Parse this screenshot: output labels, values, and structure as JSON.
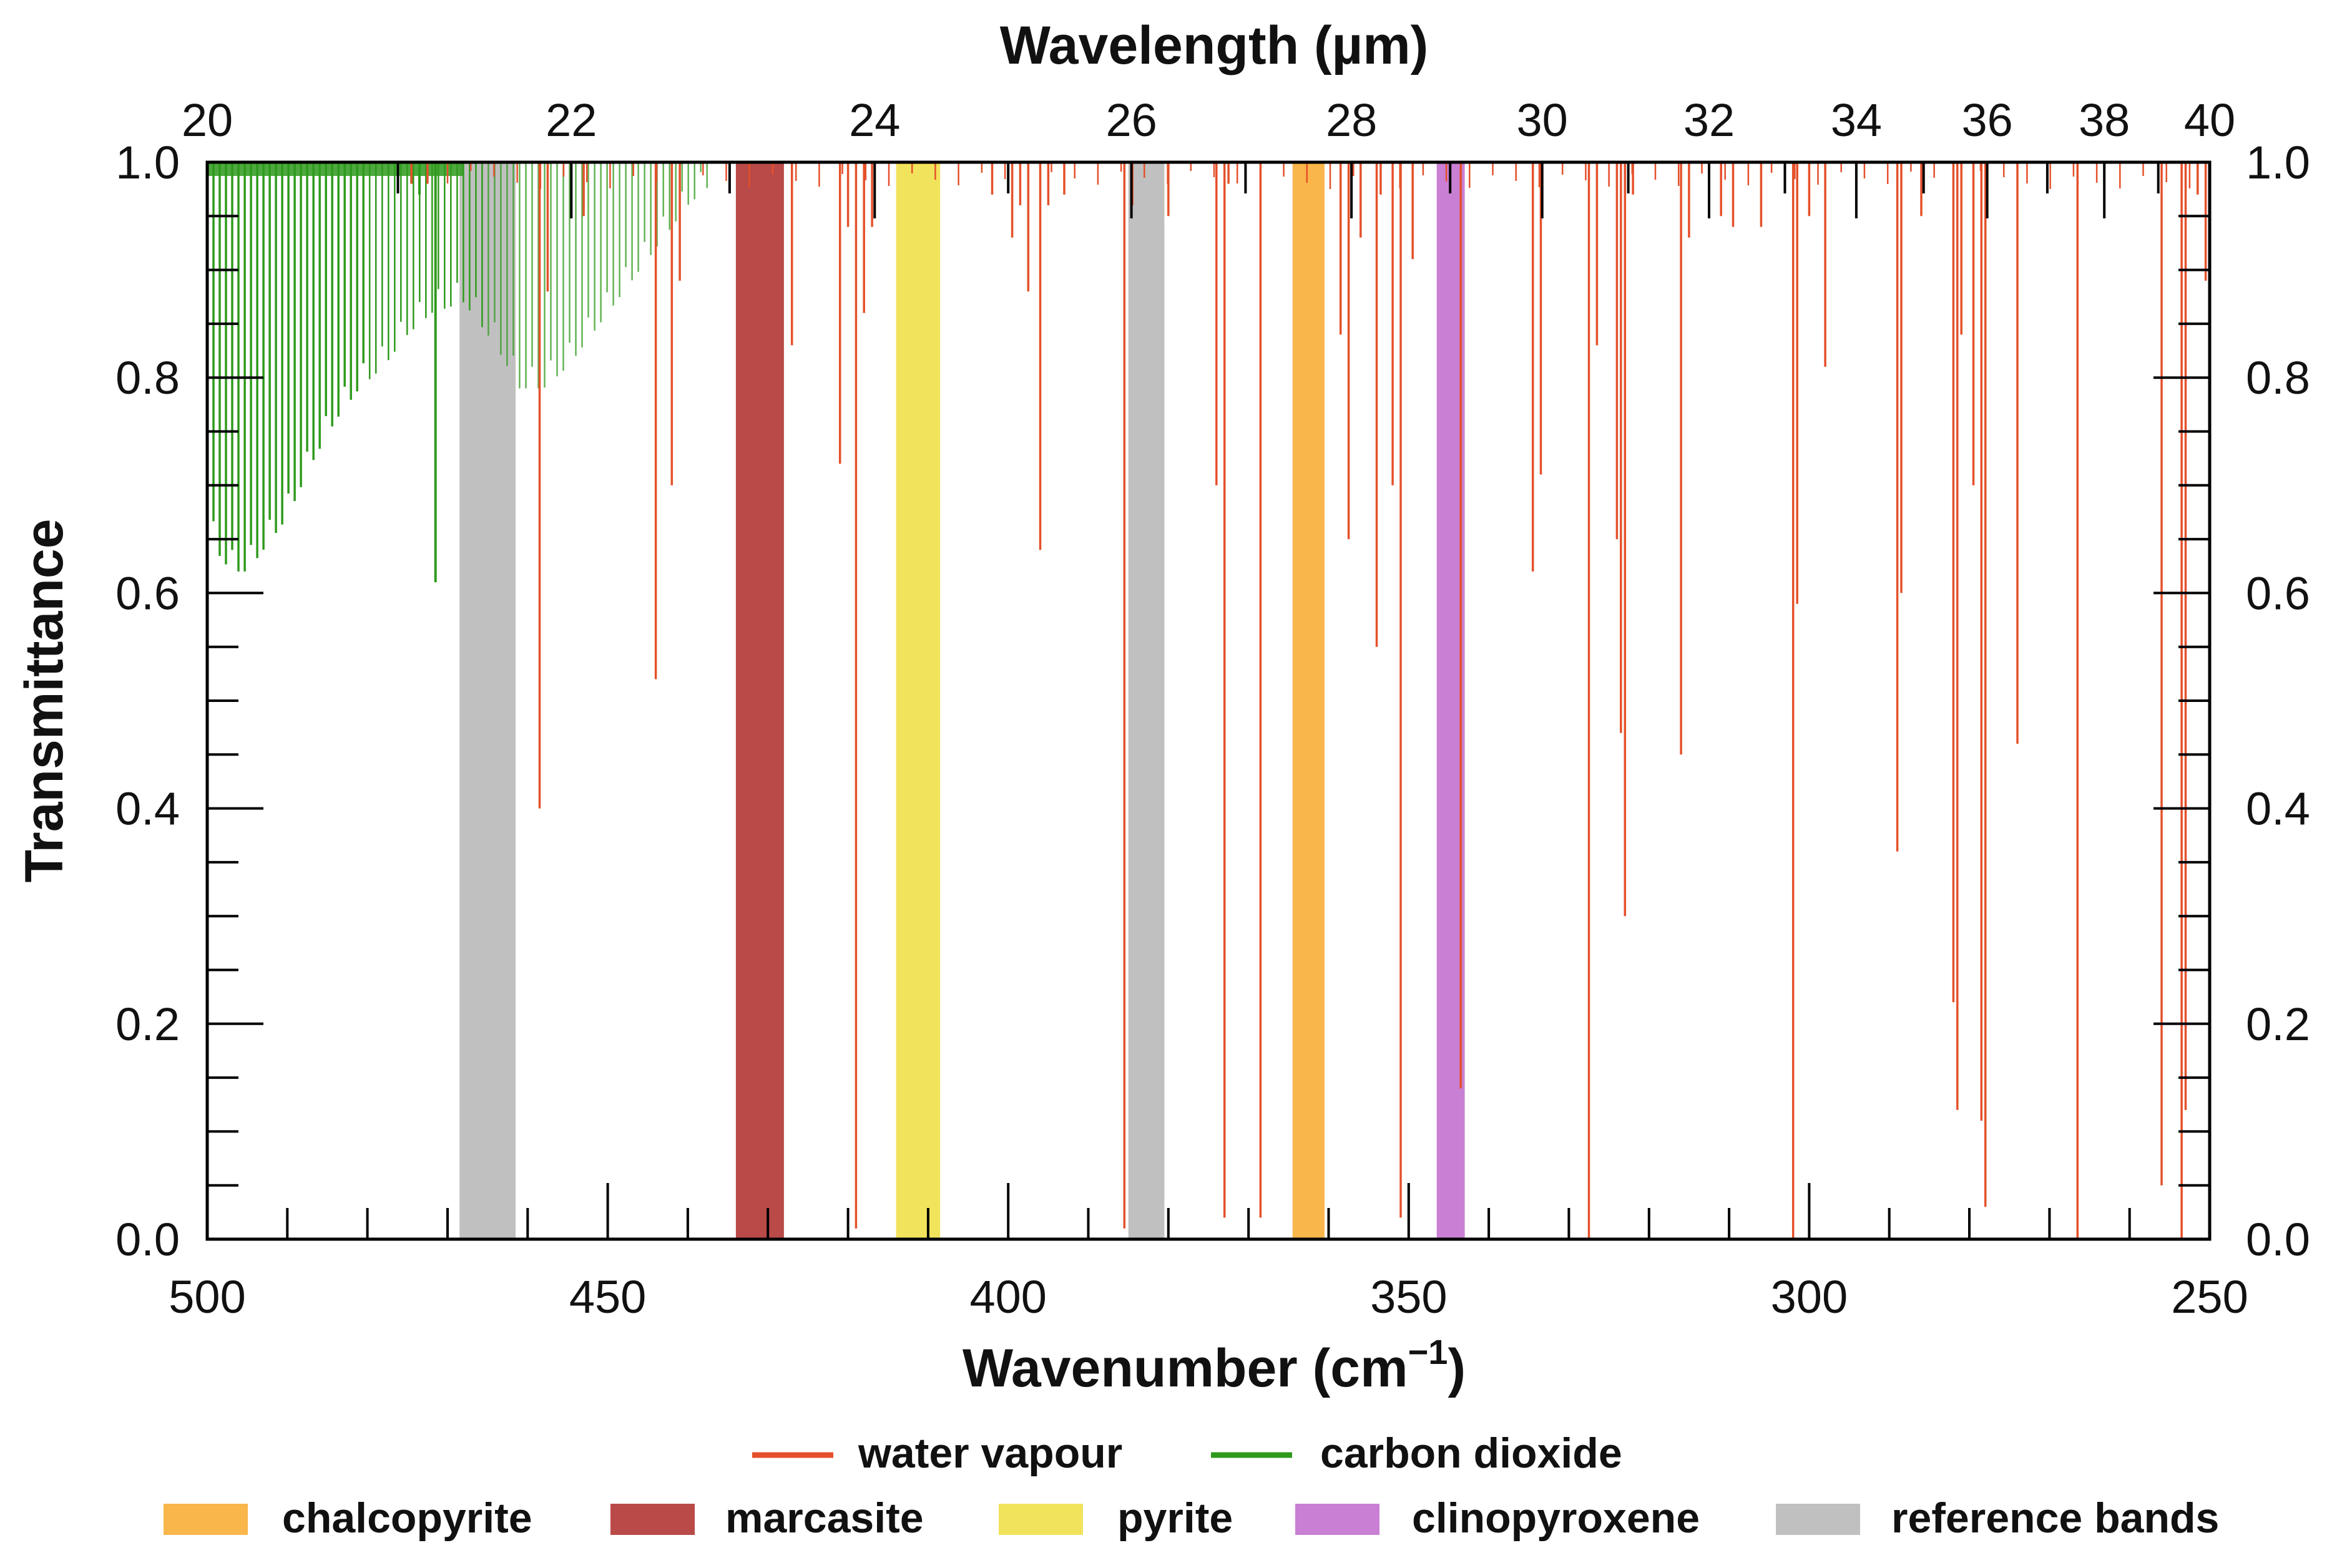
{
  "chart_data": {
    "type": "line",
    "title": "",
    "xlabel": "Wavenumber (cm",
    "xlabel_superscript": "−1",
    "xlabel_close": ")",
    "x2label": "Wavelength (µm)",
    "ylabel": "Transmittance",
    "xlim": [
      500,
      250
    ],
    "ylim": [
      0.0,
      1.0
    ],
    "x_ticks": [
      "500",
      "450",
      "400",
      "350",
      "300",
      "250"
    ],
    "x_tick_values": [
      500,
      450,
      400,
      350,
      300,
      250
    ],
    "x2_ticks": [
      "20",
      "22",
      "24",
      "26",
      "28",
      "30",
      "32",
      "34",
      "36",
      "38",
      "40"
    ],
    "x2_tick_values": [
      20,
      22,
      24,
      26,
      28,
      30,
      32,
      34,
      36,
      38,
      40
    ],
    "y_ticks": [
      "0.0",
      "0.2",
      "0.4",
      "0.6",
      "0.8",
      "1.0"
    ],
    "y_tick_values": [
      0.0,
      0.2,
      0.4,
      0.6,
      0.8,
      1.0
    ],
    "grid": false,
    "bands": [
      {
        "name": "reference bands",
        "from": 468.5,
        "to": 461.5,
        "color": "#c0c0c0"
      },
      {
        "name": "marcasite",
        "from": 434.0,
        "to": 428.0,
        "color": "#b94a48"
      },
      {
        "name": "pyrite",
        "from": 414.0,
        "to": 408.5,
        "color": "#f2e35c"
      },
      {
        "name": "reference bands",
        "from": 385.0,
        "to": 380.5,
        "color": "#c0c0c0"
      },
      {
        "name": "chalcopyrite",
        "from": 364.5,
        "to": 360.5,
        "color": "#f9b64a"
      },
      {
        "name": "clinopyroxene",
        "from": 346.5,
        "to": 343.0,
        "color": "#c97fd4"
      }
    ],
    "series": [
      {
        "name": "carbon dioxide",
        "color": "#2e9a1c",
        "envelope": [
          [
            500,
            0.67
          ],
          [
            499,
            0.64
          ],
          [
            497,
            0.62
          ],
          [
            495,
            0.62
          ],
          [
            493,
            0.64
          ],
          [
            490,
            0.67
          ],
          [
            487,
            0.72
          ],
          [
            484,
            0.76
          ],
          [
            481,
            0.79
          ],
          [
            478,
            0.81
          ],
          [
            475,
            0.84
          ],
          [
            472,
            0.86
          ],
          [
            468,
            0.87
          ],
          [
            464,
            0.83
          ],
          [
            461,
            0.79
          ],
          [
            458,
            0.79
          ],
          [
            455,
            0.81
          ],
          [
            452,
            0.84
          ],
          [
            449,
            0.87
          ],
          [
            446,
            0.9
          ],
          [
            443,
            0.93
          ],
          [
            440,
            0.96
          ],
          [
            437,
            0.98
          ]
        ],
        "lines": [
          [
            471.5,
            0.61
          ],
          [
            473.5,
            0.97
          ],
          [
            474.5,
            0.98
          ]
        ]
      },
      {
        "name": "water vapour",
        "color": "#e5502a",
        "lines": [
          [
            474.5,
            0.98
          ],
          [
            472.5,
            0.98
          ],
          [
            458.5,
            0.4
          ],
          [
            457.5,
            0.88
          ],
          [
            453,
            0.95
          ],
          [
            444,
            0.52
          ],
          [
            442,
            0.7
          ],
          [
            441,
            0.89
          ],
          [
            427,
            0.83
          ],
          [
            421,
            0.72
          ],
          [
            420,
            0.94
          ],
          [
            419,
            0.01
          ],
          [
            418,
            0.86
          ],
          [
            417,
            0.94
          ],
          [
            402,
            0.97
          ],
          [
            399.5,
            0.93
          ],
          [
            398.5,
            0.96
          ],
          [
            397.5,
            0.88
          ],
          [
            396,
            0.64
          ],
          [
            395,
            0.96
          ],
          [
            393,
            0.97
          ],
          [
            385.5,
            0.01
          ],
          [
            384.5,
            0.96
          ],
          [
            380,
            0.95
          ],
          [
            374,
            0.7
          ],
          [
            373,
            0.02
          ],
          [
            372.5,
            0.98
          ],
          [
            368.5,
            0.02
          ],
          [
            358.5,
            0.84
          ],
          [
            357.5,
            0.65
          ],
          [
            356,
            0.93
          ],
          [
            354,
            0.55
          ],
          [
            353.5,
            0.97
          ],
          [
            352,
            0.7
          ],
          [
            351,
            0.02
          ],
          [
            349.5,
            0.91
          ],
          [
            343.5,
            0.14
          ],
          [
            334.5,
            0.62
          ],
          [
            333.5,
            0.71
          ],
          [
            327.5,
            0.0
          ],
          [
            326.5,
            0.83
          ],
          [
            324,
            0.65
          ],
          [
            323.5,
            0.47
          ],
          [
            323,
            0.3
          ],
          [
            322,
            0.97
          ],
          [
            316,
            0.45
          ],
          [
            315,
            0.93
          ],
          [
            311,
            0.95
          ],
          [
            309.5,
            0.94
          ],
          [
            306,
            0.94
          ],
          [
            302,
            0.0
          ],
          [
            301.5,
            0.59
          ],
          [
            300,
            0.95
          ],
          [
            298,
            0.81
          ],
          [
            289,
            0.36
          ],
          [
            288.5,
            0.6
          ],
          [
            286,
            0.95
          ],
          [
            282,
            0.22
          ],
          [
            281.5,
            0.12
          ],
          [
            281,
            0.84
          ],
          [
            279.5,
            0.7
          ],
          [
            278.5,
            0.11
          ],
          [
            278,
            0.03
          ],
          [
            274,
            0.46
          ],
          [
            266.5,
            0.0
          ],
          [
            256,
            0.05
          ],
          [
            253.5,
            0.0
          ],
          [
            253,
            0.12
          ],
          [
            251.5,
            0.97
          ],
          [
            250.5,
            0.89
          ]
        ]
      }
    ],
    "legend": {
      "location": "bottom",
      "line_entries": [
        {
          "label": "water vapour",
          "color": "#e5502a"
        },
        {
          "label": "carbon dioxide",
          "color": "#2e9a1c"
        }
      ],
      "patch_entries": [
        {
          "label": "chalcopyrite",
          "color": "#f9b64a"
        },
        {
          "label": "marcasite",
          "color": "#b94a48"
        },
        {
          "label": "pyrite",
          "color": "#f2e35c"
        },
        {
          "label": "clinopyroxene",
          "color": "#c97fd4"
        },
        {
          "label": "reference bands",
          "color": "#c0c0c0"
        }
      ]
    }
  }
}
